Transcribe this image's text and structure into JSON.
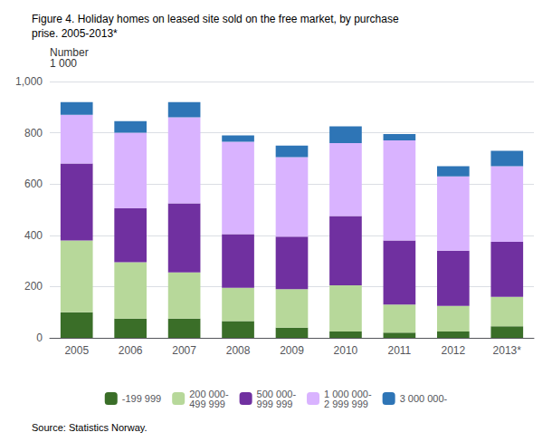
{
  "chart_data": {
    "type": "bar",
    "stacked": true,
    "title": "Figure 4. Holiday homes on leased site sold on the free market, by purchase\nprise. 2005-2013*",
    "ylabel": "Number\n1 000",
    "source": "Source: Statistics Norway.",
    "categories": [
      "2005",
      "2006",
      "2007",
      "2008",
      "2009",
      "2010",
      "2011",
      "2012",
      "2013*"
    ],
    "series": [
      {
        "name": "-199 999",
        "color": "#3a6e28",
        "values": [
          100,
          75,
          75,
          65,
          40,
          25,
          20,
          25,
          45
        ]
      },
      {
        "name": "200 000-\n499 999",
        "color": "#b7d89a",
        "values": [
          280,
          220,
          180,
          130,
          150,
          180,
          110,
          100,
          115
        ]
      },
      {
        "name": "500 000-\n999 999",
        "color": "#7030a0",
        "values": [
          300,
          210,
          270,
          210,
          205,
          270,
          250,
          215,
          215
        ]
      },
      {
        "name": "1 000 000-\n2 999 999",
        "color": "#d9b3ff",
        "values": [
          190,
          295,
          335,
          360,
          310,
          285,
          390,
          290,
          295
        ]
      },
      {
        "name": "3 000 000-",
        "color": "#2e75b6",
        "values": [
          50,
          45,
          60,
          25,
          45,
          65,
          25,
          40,
          60
        ]
      }
    ],
    "ylim": [
      0,
      1000
    ],
    "yticks": [
      0,
      200,
      400,
      600,
      800,
      1000
    ],
    "grid": true,
    "legend": "bottom"
  }
}
